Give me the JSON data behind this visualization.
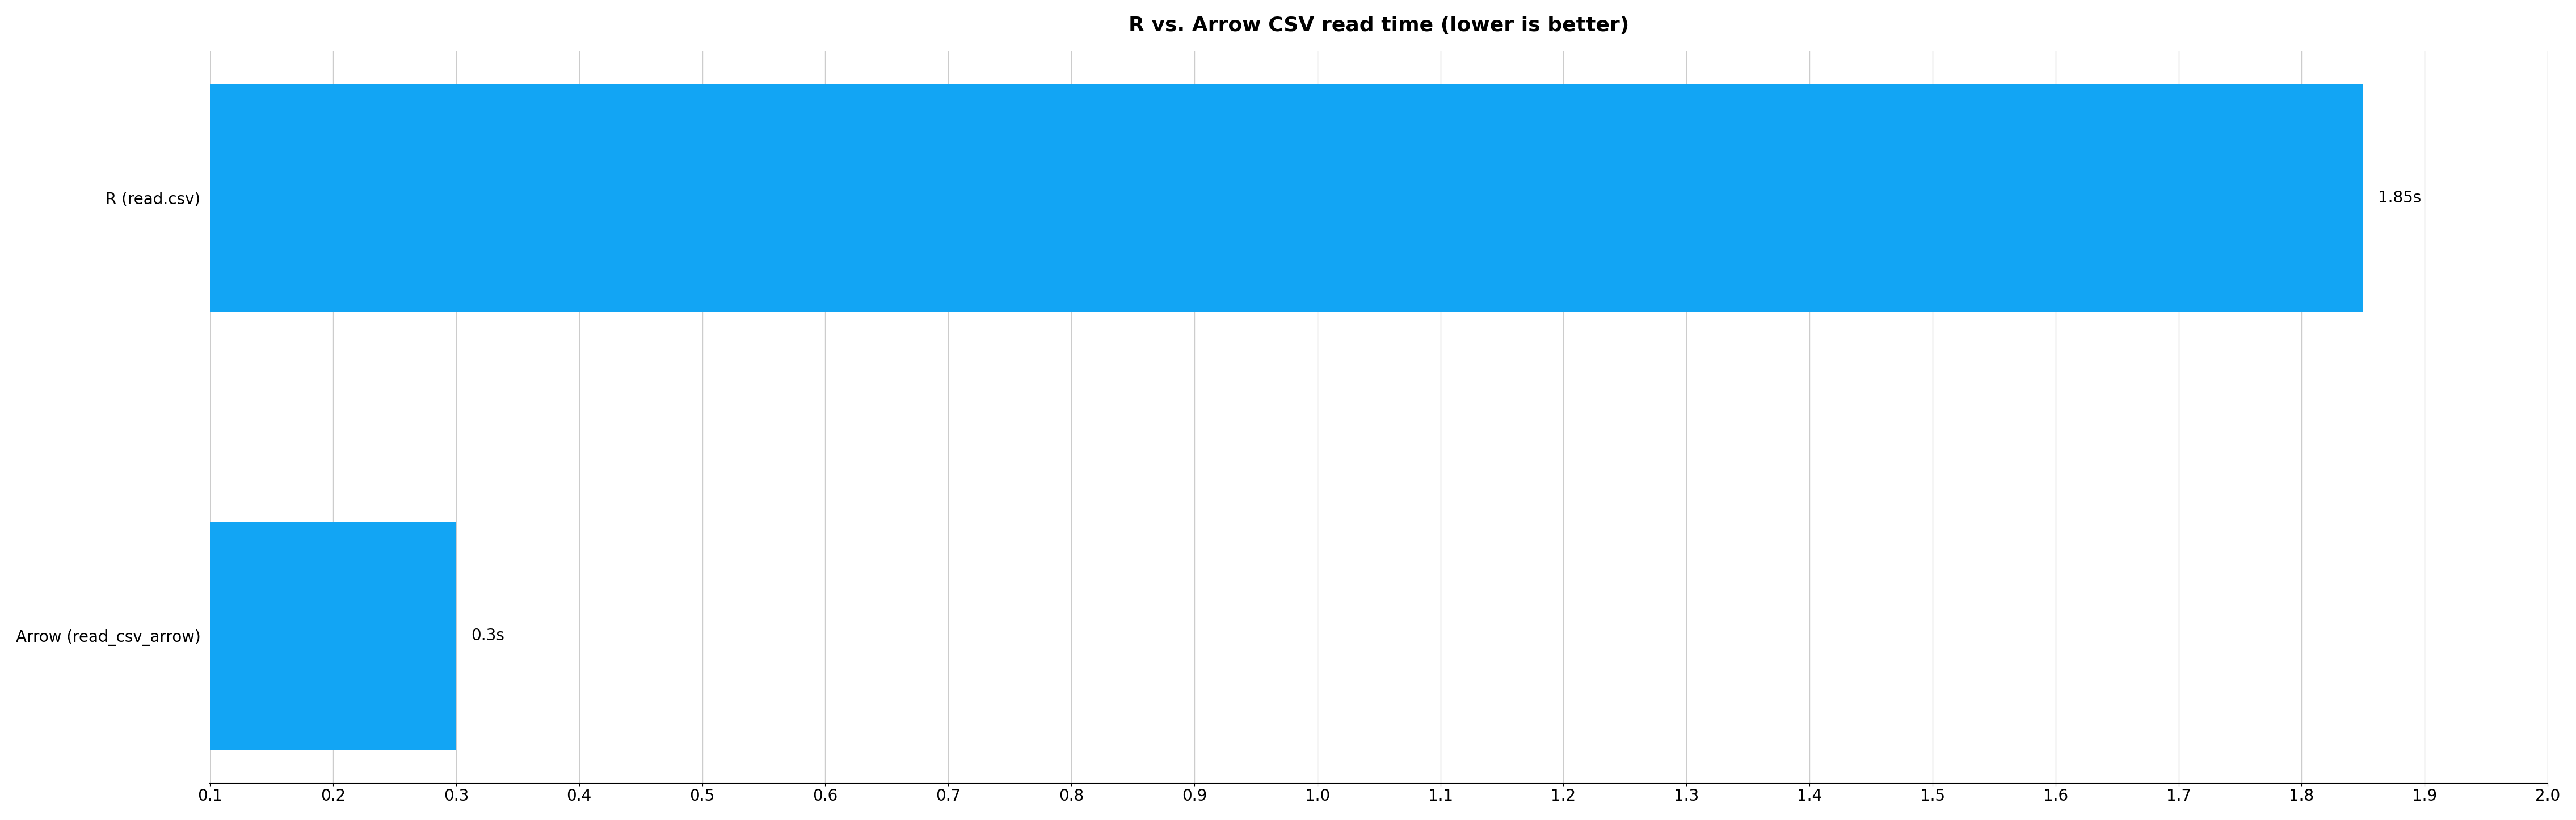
{
  "title": "R vs. Arrow CSV read time (lower is better)",
  "categories": [
    "R (read.csv)",
    "Arrow (read_csv_arrow)"
  ],
  "values": [
    1.85,
    0.3
  ],
  "labels": [
    "1.85s",
    "0.3s"
  ],
  "bar_color": "#12A5F4",
  "xlim_min": 0.1,
  "xlim_max": 2.0,
  "xticks": [
    0.1,
    0.2,
    0.3,
    0.4,
    0.5,
    0.6,
    0.7,
    0.8,
    0.9,
    1.0,
    1.1,
    1.2,
    1.3,
    1.4,
    1.5,
    1.6,
    1.7,
    1.8,
    1.9,
    2.0
  ],
  "background_color": "#ffffff",
  "grid_color": "#cccccc",
  "title_fontsize": 26,
  "label_fontsize": 20,
  "tick_fontsize": 20,
  "bar_label_fontsize": 20,
  "bar_height": 0.52
}
